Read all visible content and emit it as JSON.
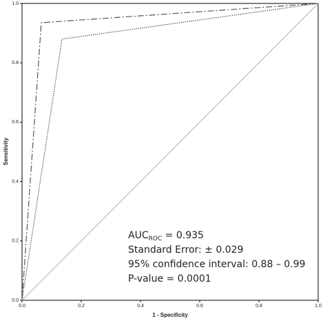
{
  "chart_data": {
    "type": "line",
    "xlabel": "1 - Specificity",
    "ylabel": "Sensitivity",
    "xlim": [
      0,
      1
    ],
    "ylim": [
      0,
      1
    ],
    "xticks": [
      {
        "value": 0,
        "label": "0.0"
      },
      0.2,
      0.4,
      0.6,
      0.8,
      {
        "value": 1,
        "label": "1.0"
      }
    ],
    "yticks": [
      {
        "value": 0,
        "label": "0.0"
      },
      0.2,
      0.4,
      0.6,
      0.8,
      {
        "value": 1,
        "label": "1.0"
      }
    ],
    "series": [
      {
        "color": "#555555",
        "dash": "9,3,2,3",
        "x": [
          0,
          0.065,
          1
        ],
        "values": [
          0,
          0.935,
          1
        ]
      },
      {
        "color": "#555555",
        "dash": "1.5,1.5",
        "x": [
          0,
          0.135,
          1
        ],
        "values": [
          0,
          0.88,
          1
        ]
      },
      {
        "color": "#bbbbbb",
        "dash": "none",
        "x": [
          0,
          1
        ],
        "values": [
          0,
          1
        ]
      }
    ],
    "annotation": {
      "auc": "AUC",
      "auc_sub": "ROC",
      "auc_value": " = 0.935",
      "lines": [
        "Standard Error: ± 0.029",
        "95% confidence interval: 0.88 – 0.99",
        "P-value = 0.0001"
      ]
    }
  }
}
